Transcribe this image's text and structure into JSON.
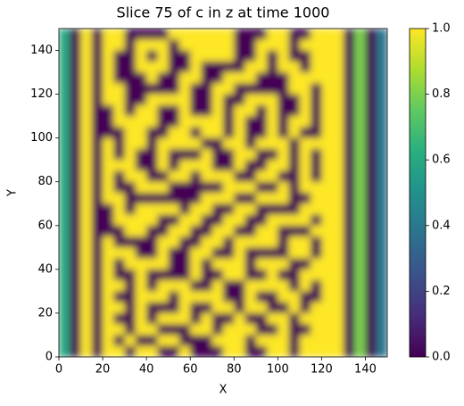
{
  "chart_data": {
    "type": "heatmap",
    "title": "Slice 75 of c in z at time 1000",
    "x_label": "X",
    "y_label": "Y",
    "colormap": "viridis",
    "xlim": [
      0,
      150
    ],
    "ylim": [
      0,
      150
    ],
    "xticks": [
      0,
      20,
      40,
      60,
      80,
      100,
      120,
      140
    ],
    "yticks": [
      0,
      20,
      40,
      60,
      80,
      100,
      120,
      140
    ],
    "clim": [
      0,
      1
    ],
    "cticks": [
      {
        "value": 0,
        "label": "0.0"
      },
      {
        "value": 0.2,
        "label": "0.2"
      },
      {
        "value": 0.4,
        "label": "0.4"
      },
      {
        "value": 0.6,
        "label": "0.6"
      },
      {
        "value": 0.8,
        "label": "0.8"
      },
      {
        "value": 1,
        "label": "1.0"
      }
    ],
    "x": [
      2.5,
      7.5,
      12.5,
      17.5,
      22.5,
      27.5,
      32.5,
      37.5,
      42.5,
      47.5,
      52.5,
      57.5,
      62.5,
      67.5,
      72.5,
      77.5,
      82.5,
      87.5,
      92.5,
      97.5,
      102.5,
      107.5,
      112.5,
      117.5,
      122.5,
      127.5,
      132.5,
      137.5,
      142.5,
      147.5
    ],
    "y": [
      147.5,
      142.5,
      137.5,
      132.5,
      127.5,
      122.5,
      117.5,
      112.5,
      107.5,
      102.5,
      97.5,
      92.5,
      87.5,
      82.5,
      77.5,
      72.5,
      67.5,
      62.5,
      57.5,
      52.5,
      47.5,
      42.5,
      37.5,
      32.5,
      27.5,
      22.5,
      17.5,
      12.5,
      7.5,
      2.5
    ],
    "values": [
      [
        0.6,
        0,
        1,
        0,
        1,
        1,
        0,
        0,
        0,
        0,
        1,
        1,
        1,
        1,
        1,
        1,
        0,
        0,
        0,
        1,
        1,
        0,
        0,
        1,
        1,
        1,
        0,
        0.8,
        0,
        0.4
      ],
      [
        0.6,
        0,
        1,
        0,
        1,
        1,
        0,
        1,
        1,
        1,
        0,
        1,
        1,
        1,
        1,
        1,
        0,
        0,
        1,
        1,
        1,
        0,
        1,
        1,
        1,
        1,
        0,
        0.8,
        0,
        0.4
      ],
      [
        0.6,
        0,
        1,
        0,
        1,
        0,
        0,
        1,
        0,
        1,
        0,
        0,
        1,
        1,
        1,
        1,
        0,
        0,
        1,
        0,
        1,
        0,
        0,
        1,
        1,
        1,
        0,
        0.8,
        0,
        0.4
      ],
      [
        0.6,
        0,
        1,
        0,
        1,
        0,
        0,
        1,
        1,
        1,
        0,
        0,
        1,
        0,
        0,
        0,
        0,
        1,
        1,
        0,
        1,
        1,
        0,
        1,
        1,
        1,
        0,
        0.8,
        0,
        0.4
      ],
      [
        0.6,
        0,
        1,
        0,
        1,
        0,
        0,
        0,
        1,
        0,
        0,
        1,
        1,
        0,
        0,
        1,
        1,
        1,
        0,
        0,
        0,
        1,
        1,
        1,
        1,
        1,
        0,
        0.8,
        0,
        0.4
      ],
      [
        0.6,
        0,
        1,
        0,
        1,
        1,
        0,
        0,
        0,
        0,
        0,
        1,
        0,
        0,
        1,
        1,
        0,
        0,
        0,
        0,
        0,
        1,
        1,
        0,
        1,
        1,
        0,
        0.8,
        0,
        0.4
      ],
      [
        0.6,
        0,
        1,
        0,
        1,
        1,
        0,
        0,
        1,
        1,
        1,
        1,
        0,
        0,
        1,
        0,
        0,
        1,
        1,
        1,
        0,
        0,
        1,
        0,
        1,
        1,
        0,
        0.8,
        0,
        0.4
      ],
      [
        0.6,
        0,
        1,
        0,
        0,
        1,
        0,
        1,
        1,
        0,
        0,
        1,
        0,
        0,
        1,
        0,
        1,
        1,
        0,
        1,
        0,
        0,
        1,
        0,
        1,
        1,
        0,
        0.8,
        0,
        0.4
      ],
      [
        0.6,
        0,
        1,
        0,
        0,
        1,
        1,
        1,
        1,
        0,
        0,
        1,
        1,
        1,
        1,
        0,
        1,
        0,
        0,
        1,
        0,
        1,
        1,
        0,
        1,
        1,
        0,
        0.8,
        0,
        0.4
      ],
      [
        0.6,
        0,
        1,
        0,
        0,
        0,
        1,
        1,
        0,
        0,
        1,
        1,
        0,
        1,
        1,
        0,
        1,
        0,
        0,
        1,
        0,
        1,
        0,
        0,
        1,
        1,
        0,
        0.8,
        0,
        0.4
      ],
      [
        0.6,
        0,
        1,
        0,
        1,
        0,
        1,
        1,
        0,
        1,
        1,
        1,
        1,
        0,
        0,
        1,
        1,
        0,
        1,
        1,
        1,
        0,
        1,
        1,
        1,
        1,
        0,
        0.8,
        0,
        0.4
      ],
      [
        0.6,
        0,
        1,
        0,
        1,
        0,
        1,
        0,
        0,
        1,
        0,
        0,
        0,
        1,
        0,
        0,
        1,
        1,
        0,
        0,
        1,
        0,
        1,
        0,
        1,
        1,
        0,
        0.8,
        0,
        0.4
      ],
      [
        0.6,
        0,
        1,
        0,
        1,
        1,
        1,
        0,
        0,
        1,
        0,
        1,
        1,
        1,
        0,
        0,
        1,
        0,
        0,
        1,
        1,
        0,
        1,
        0,
        1,
        1,
        0,
        0.8,
        0,
        0.4
      ],
      [
        0.6,
        0,
        1,
        0,
        1,
        0,
        1,
        1,
        0,
        0,
        1,
        1,
        0,
        1,
        1,
        1,
        0,
        0,
        1,
        1,
        0,
        0,
        1,
        0,
        1,
        1,
        0,
        0.8,
        0,
        0.4
      ],
      [
        0.6,
        0,
        1,
        0,
        1,
        0,
        0,
        1,
        1,
        1,
        0,
        0,
        0,
        0,
        0,
        1,
        1,
        1,
        0,
        0,
        1,
        0,
        1,
        1,
        1,
        1,
        0,
        0.8,
        0,
        0.4
      ],
      [
        0.6,
        0,
        1,
        0,
        1,
        1,
        0,
        0,
        0,
        0,
        0,
        0,
        0,
        1,
        1,
        1,
        0,
        0,
        1,
        1,
        1,
        0,
        0,
        1,
        1,
        1,
        0,
        0.8,
        0,
        0.4
      ],
      [
        0.6,
        0,
        1,
        0,
        0,
        1,
        0,
        1,
        1,
        1,
        1,
        0,
        1,
        1,
        0,
        0,
        1,
        1,
        0,
        0,
        0,
        0,
        1,
        1,
        1,
        1,
        0,
        0.8,
        0,
        0.4
      ],
      [
        0.6,
        0,
        1,
        0,
        0,
        1,
        1,
        1,
        1,
        0,
        0,
        1,
        1,
        0,
        0,
        1,
        1,
        0,
        0,
        1,
        1,
        1,
        1,
        0,
        1,
        1,
        0,
        0.8,
        0,
        0.4
      ],
      [
        0.6,
        0,
        1,
        0,
        0,
        0,
        1,
        1,
        0,
        0,
        1,
        1,
        0,
        0,
        1,
        1,
        0,
        0,
        1,
        1,
        0,
        0,
        0,
        1,
        1,
        1,
        0,
        0.8,
        0,
        0.4
      ],
      [
        0.6,
        0,
        1,
        0,
        1,
        0,
        0,
        0,
        0,
        1,
        1,
        0,
        0,
        1,
        1,
        0,
        1,
        1,
        1,
        1,
        0,
        1,
        1,
        0,
        1,
        1,
        0,
        0.8,
        0,
        0.4
      ],
      [
        0.6,
        0,
        1,
        0,
        1,
        1,
        1,
        0,
        0,
        1,
        0,
        0,
        1,
        1,
        0,
        0,
        1,
        0,
        0,
        0,
        0,
        1,
        1,
        0,
        1,
        1,
        0,
        0.8,
        0,
        0.4
      ],
      [
        0.6,
        0,
        1,
        0,
        1,
        0,
        1,
        1,
        1,
        1,
        0,
        0,
        1,
        0,
        1,
        1,
        1,
        0,
        1,
        1,
        1,
        0,
        0,
        1,
        1,
        1,
        0,
        0.8,
        0,
        0.4
      ],
      [
        0.6,
        0,
        1,
        0,
        1,
        0,
        0,
        1,
        0,
        0,
        0,
        0,
        1,
        0,
        0,
        1,
        1,
        0,
        0,
        1,
        0,
        0,
        1,
        1,
        1,
        1,
        0,
        0.8,
        0,
        0.4
      ],
      [
        0.6,
        0,
        1,
        0,
        1,
        1,
        0,
        1,
        0,
        1,
        1,
        1,
        0,
        0,
        1,
        0,
        0,
        1,
        1,
        1,
        1,
        0,
        1,
        0,
        1,
        1,
        0,
        0.8,
        0,
        0.4
      ],
      [
        0.6,
        0,
        1,
        0,
        1,
        0,
        0,
        1,
        1,
        1,
        0,
        1,
        1,
        1,
        1,
        0,
        0,
        1,
        0,
        0,
        1,
        1,
        0,
        0,
        1,
        1,
        0,
        0.8,
        0,
        0.4
      ],
      [
        0.6,
        0,
        1,
        0,
        1,
        1,
        0,
        1,
        0,
        0,
        0,
        1,
        0,
        0,
        1,
        1,
        0,
        1,
        1,
        0,
        0,
        1,
        0,
        1,
        1,
        1,
        0,
        0.8,
        0,
        0.4
      ],
      [
        0.6,
        0,
        1,
        0,
        1,
        0,
        0,
        1,
        0,
        1,
        1,
        1,
        0,
        1,
        0,
        0,
        1,
        0,
        0,
        1,
        1,
        0,
        1,
        1,
        1,
        1,
        0,
        0.8,
        0,
        0.4
      ],
      [
        0.6,
        0,
        1,
        0,
        1,
        1,
        0,
        1,
        1,
        0,
        0,
        0,
        1,
        1,
        0,
        1,
        1,
        1,
        0,
        0,
        1,
        0,
        0,
        1,
        1,
        1,
        0,
        0.8,
        0,
        0.4
      ],
      [
        0.6,
        0,
        1,
        0,
        1,
        0,
        1,
        0,
        0,
        1,
        1,
        0,
        0,
        0,
        1,
        1,
        1,
        0,
        1,
        1,
        1,
        0,
        1,
        1,
        1,
        1,
        0,
        0.8,
        0,
        0.4
      ],
      [
        0.6,
        0,
        1,
        0,
        1,
        1,
        0,
        1,
        1,
        0,
        0,
        1,
        0,
        0,
        0,
        1,
        1,
        0,
        0,
        1,
        1,
        0,
        1,
        1,
        1,
        1,
        0,
        0.8,
        0,
        0.4
      ]
    ]
  }
}
